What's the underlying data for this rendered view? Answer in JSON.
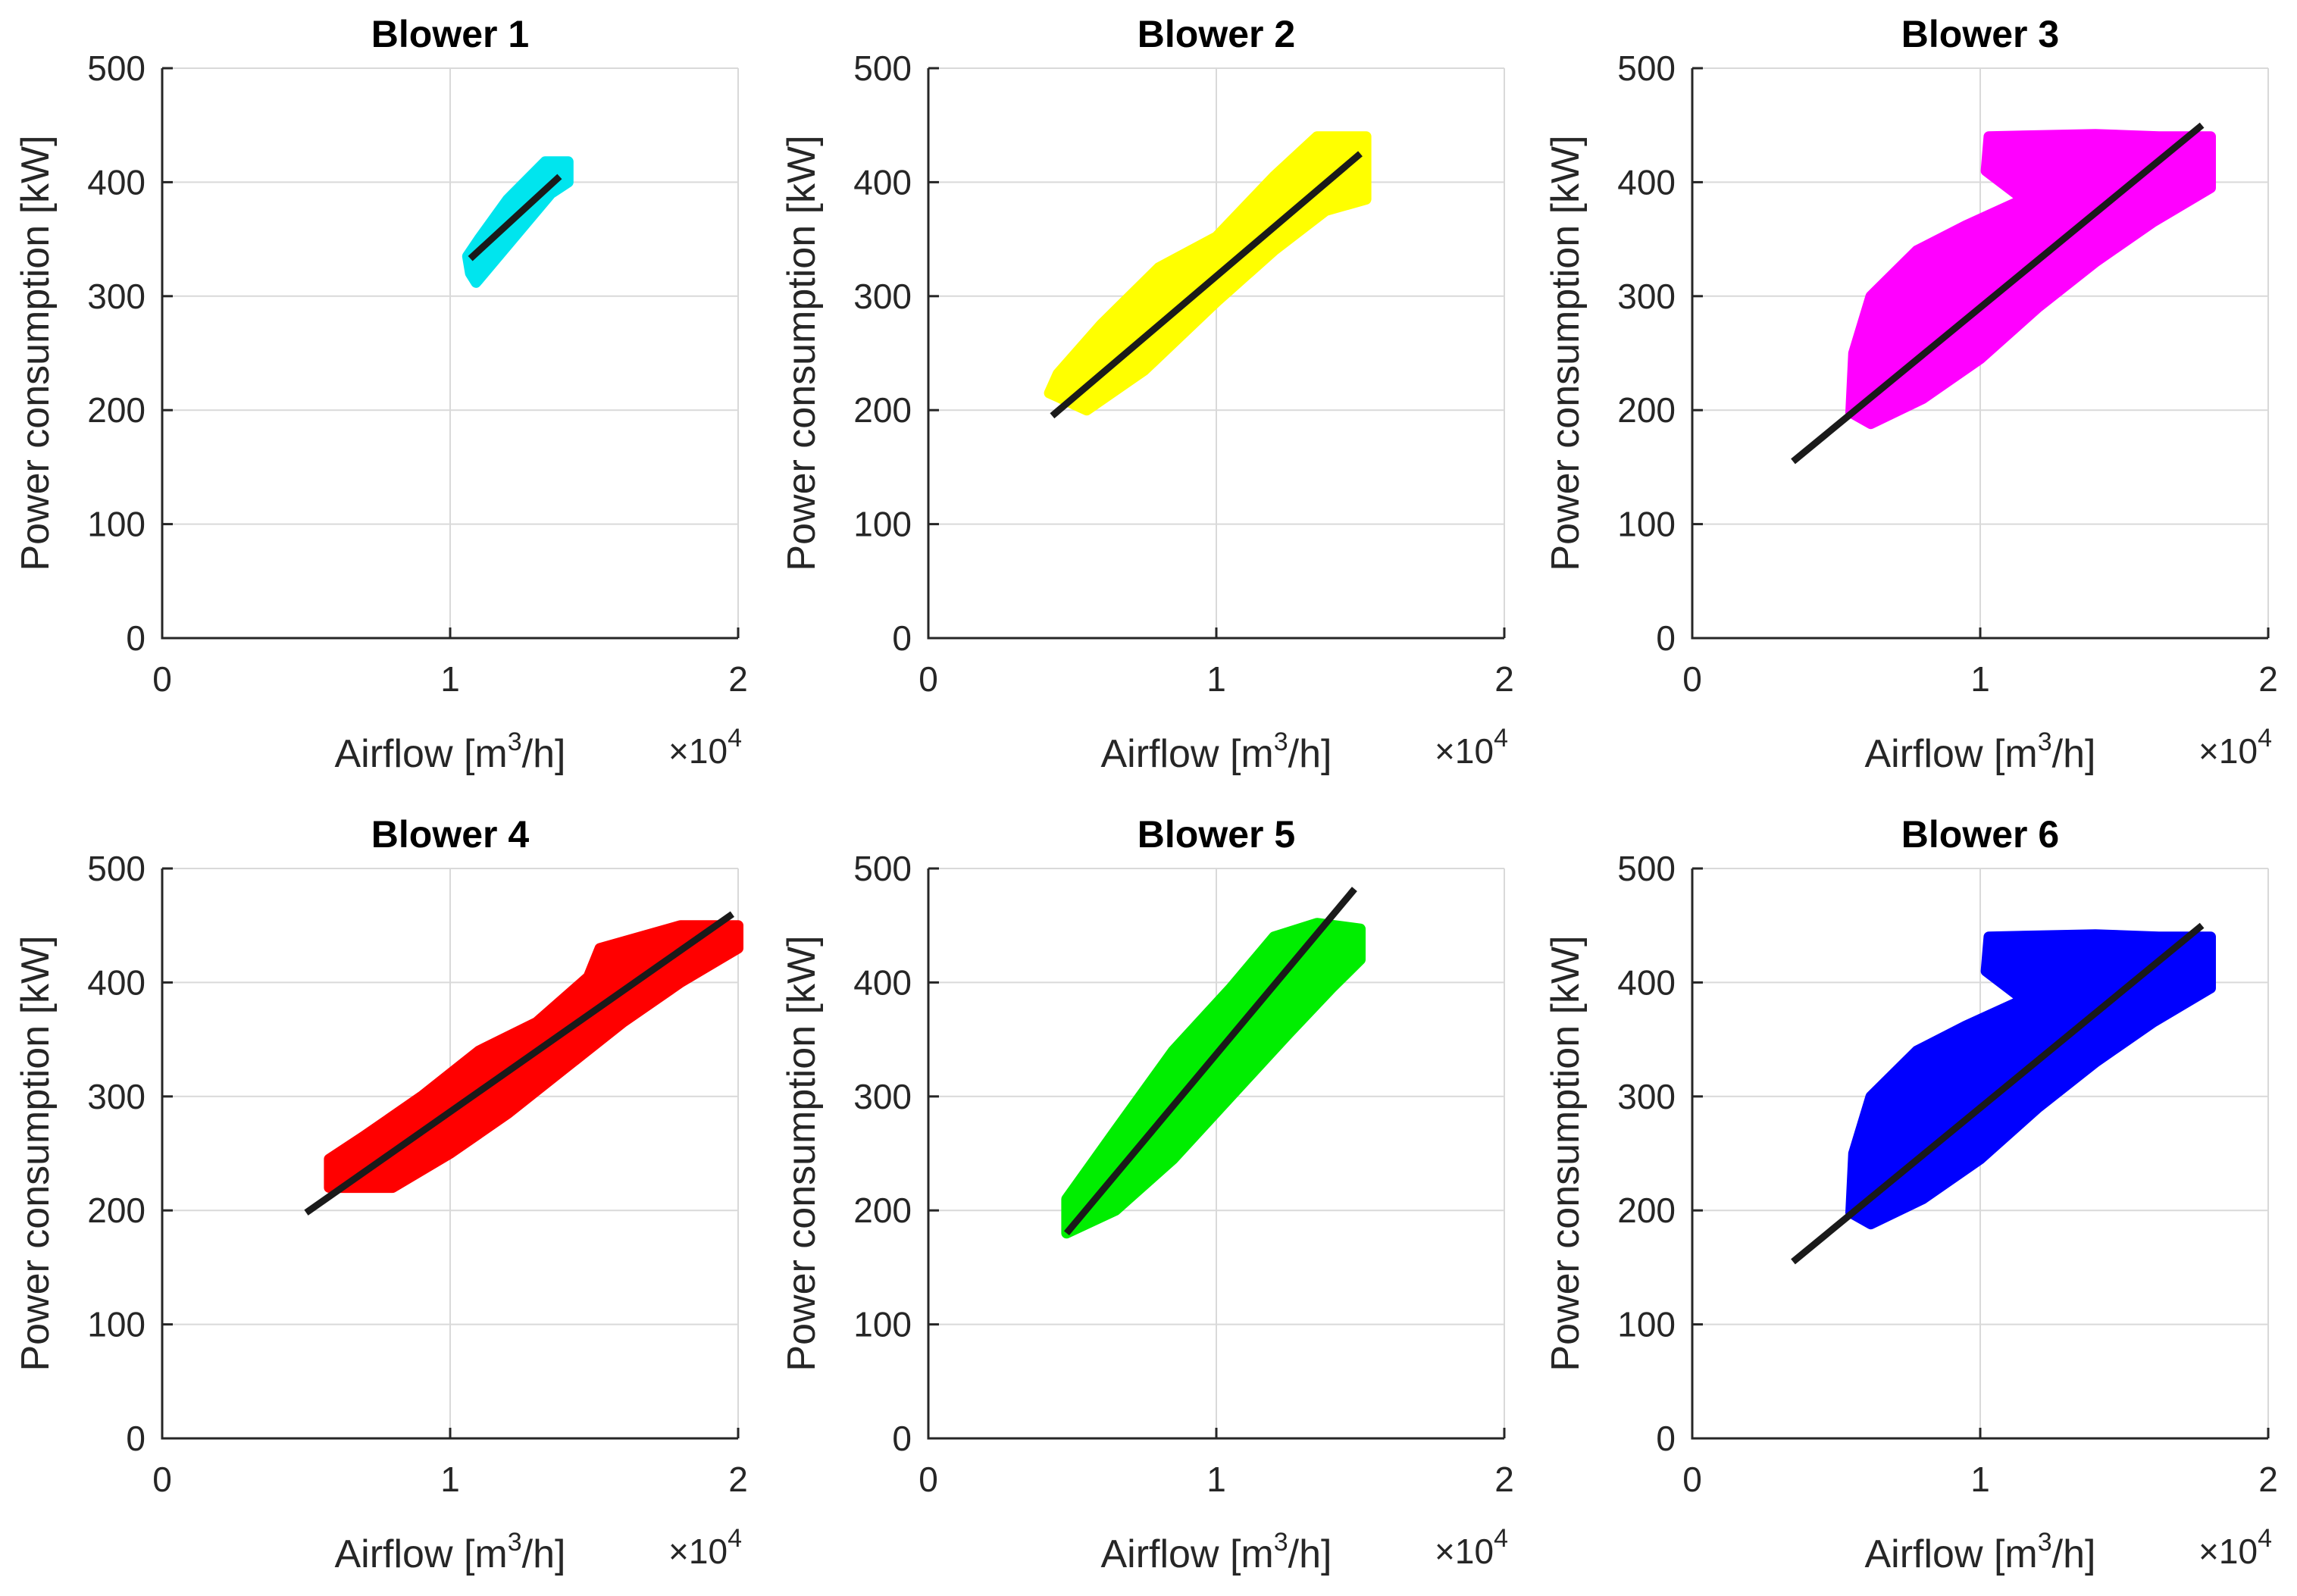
{
  "chart_data": [
    {
      "type": "scatter",
      "title": "Blower 1",
      "xlabel": "Airflow [m3/h]",
      "xlabel_parts": {
        "pre": "Airflow [m",
        "sup": "3",
        "post": "/h]"
      },
      "ylabel": "Power consumption [kW]",
      "x_multiplier": {
        "base": "×10",
        "exp": "4"
      },
      "xlim": [
        0,
        2
      ],
      "ylim": [
        0,
        500
      ],
      "xticks": [
        "0",
        "1",
        "2"
      ],
      "yticks": [
        "0",
        "100",
        "200",
        "300",
        "400",
        "500"
      ],
      "xtick_values": [
        0,
        1,
        2
      ],
      "ytick_values": [
        0,
        100,
        200,
        300,
        400,
        500
      ],
      "grid": true,
      "point_color": "#00e5ee",
      "cloud": [
        [
          1.07,
          320
        ],
        [
          1.09,
          312
        ],
        [
          1.2,
          345
        ],
        [
          1.35,
          390
        ],
        [
          1.41,
          400
        ],
        [
          1.41,
          418
        ],
        [
          1.33,
          418
        ],
        [
          1.2,
          385
        ],
        [
          1.1,
          350
        ],
        [
          1.06,
          335
        ]
      ],
      "fit_line": {
        "x": [
          1.07,
          1.38
        ],
        "y": [
          333,
          405
        ]
      }
    },
    {
      "type": "scatter",
      "title": "Blower 2",
      "xlabel": "Airflow [m3/h]",
      "xlabel_parts": {
        "pre": "Airflow [m",
        "sup": "3",
        "post": "/h]"
      },
      "ylabel": "Power consumption [kW]",
      "x_multiplier": {
        "base": "×10",
        "exp": "4"
      },
      "xlim": [
        0,
        2
      ],
      "ylim": [
        0,
        500
      ],
      "xticks": [
        "0",
        "1",
        "2"
      ],
      "yticks": [
        "0",
        "100",
        "200",
        "300",
        "400",
        "500"
      ],
      "xtick_values": [
        0,
        1,
        2
      ],
      "ytick_values": [
        0,
        100,
        200,
        300,
        400,
        500
      ],
      "grid": true,
      "point_color": "#ffff00",
      "cloud": [
        [
          0.42,
          215
        ],
        [
          0.55,
          200
        ],
        [
          0.75,
          235
        ],
        [
          1.0,
          295
        ],
        [
          1.2,
          340
        ],
        [
          1.38,
          375
        ],
        [
          1.52,
          385
        ],
        [
          1.52,
          440
        ],
        [
          1.35,
          440
        ],
        [
          1.2,
          405
        ],
        [
          1.0,
          352
        ],
        [
          0.8,
          325
        ],
        [
          0.6,
          275
        ],
        [
          0.45,
          232
        ]
      ],
      "fit_line": {
        "x": [
          0.43,
          1.5
        ],
        "y": [
          195,
          425
        ]
      }
    },
    {
      "type": "scatter",
      "title": "Blower 3",
      "xlabel": "Airflow [m3/h]",
      "xlabel_parts": {
        "pre": "Airflow [m",
        "sup": "3",
        "post": "/h]"
      },
      "ylabel": "Power consumption [kW]",
      "x_multiplier": {
        "base": "×10",
        "exp": "4"
      },
      "xlim": [
        0,
        2
      ],
      "ylim": [
        0,
        500
      ],
      "xticks": [
        "0",
        "1",
        "2"
      ],
      "yticks": [
        "0",
        "100",
        "200",
        "300",
        "400",
        "500"
      ],
      "xtick_values": [
        0,
        1,
        2
      ],
      "ytick_values": [
        0,
        100,
        200,
        300,
        400,
        500
      ],
      "grid": true,
      "point_color": "#ff00ff",
      "cloud": [
        [
          0.55,
          198
        ],
        [
          0.62,
          188
        ],
        [
          0.8,
          210
        ],
        [
          1.0,
          245
        ],
        [
          1.2,
          290
        ],
        [
          1.4,
          330
        ],
        [
          1.6,
          365
        ],
        [
          1.8,
          395
        ],
        [
          1.8,
          440
        ],
        [
          1.62,
          440
        ],
        [
          1.4,
          442
        ],
        [
          1.03,
          440
        ],
        [
          1.02,
          410
        ],
        [
          1.15,
          385
        ],
        [
          0.95,
          362
        ],
        [
          0.78,
          340
        ],
        [
          0.62,
          300
        ],
        [
          0.56,
          250
        ]
      ],
      "fit_line": {
        "x": [
          0.35,
          1.77
        ],
        "y": [
          155,
          450
        ]
      }
    },
    {
      "type": "scatter",
      "title": "Blower 4",
      "xlabel": "Airflow [m3/h]",
      "xlabel_parts": {
        "pre": "Airflow [m",
        "sup": "3",
        "post": "/h]"
      },
      "ylabel": "Power consumption [kW]",
      "x_multiplier": {
        "base": "×10",
        "exp": "4"
      },
      "xlim": [
        0,
        2
      ],
      "ylim": [
        0,
        500
      ],
      "xticks": [
        "0",
        "1",
        "2"
      ],
      "yticks": [
        "0",
        "100",
        "200",
        "300",
        "400",
        "500"
      ],
      "xtick_values": [
        0,
        1,
        2
      ],
      "ytick_values": [
        0,
        100,
        200,
        300,
        400,
        500
      ],
      "grid": true,
      "point_color": "#ff0000",
      "cloud": [
        [
          0.58,
          220
        ],
        [
          0.8,
          220
        ],
        [
          1.0,
          250
        ],
        [
          1.2,
          285
        ],
        [
          1.4,
          325
        ],
        [
          1.6,
          365
        ],
        [
          1.8,
          400
        ],
        [
          2.0,
          430
        ],
        [
          2.0,
          450
        ],
        [
          1.8,
          450
        ],
        [
          1.52,
          430
        ],
        [
          1.48,
          405
        ],
        [
          1.3,
          365
        ],
        [
          1.1,
          340
        ],
        [
          0.9,
          300
        ],
        [
          0.7,
          265
        ],
        [
          0.58,
          245
        ]
      ],
      "fit_line": {
        "x": [
          0.5,
          1.98
        ],
        "y": [
          198,
          460
        ]
      }
    },
    {
      "type": "scatter",
      "title": "Blower 5",
      "xlabel": "Airflow [m3/h]",
      "xlabel_parts": {
        "pre": "Airflow [m",
        "sup": "3",
        "post": "/h]"
      },
      "ylabel": "Power consumption [kW]",
      "x_multiplier": {
        "base": "×10",
        "exp": "4"
      },
      "xlim": [
        0,
        2
      ],
      "ylim": [
        0,
        500
      ],
      "xticks": [
        "0",
        "1",
        "2"
      ],
      "yticks": [
        "0",
        "100",
        "200",
        "300",
        "400",
        "500"
      ],
      "xtick_values": [
        0,
        1,
        2
      ],
      "ytick_values": [
        0,
        100,
        200,
        300,
        400,
        500
      ],
      "grid": true,
      "point_color": "#00ee00",
      "cloud": [
        [
          0.48,
          180
        ],
        [
          0.65,
          200
        ],
        [
          0.85,
          245
        ],
        [
          1.05,
          300
        ],
        [
          1.25,
          355
        ],
        [
          1.4,
          395
        ],
        [
          1.5,
          420
        ],
        [
          1.5,
          447
        ],
        [
          1.35,
          452
        ],
        [
          1.2,
          440
        ],
        [
          1.05,
          395
        ],
        [
          0.85,
          340
        ],
        [
          0.65,
          270
        ],
        [
          0.48,
          210
        ]
      ],
      "fit_line": {
        "x": [
          0.48,
          1.48
        ],
        "y": [
          180,
          482
        ]
      }
    },
    {
      "type": "scatter",
      "title": "Blower 6",
      "xlabel": "Airflow [m3/h]",
      "xlabel_parts": {
        "pre": "Airflow [m",
        "sup": "3",
        "post": "/h]"
      },
      "ylabel": "Power consumption [kW]",
      "x_multiplier": {
        "base": "×10",
        "exp": "4"
      },
      "xlim": [
        0,
        2
      ],
      "ylim": [
        0,
        500
      ],
      "xticks": [
        "0",
        "1",
        "2"
      ],
      "yticks": [
        "0",
        "100",
        "200",
        "300",
        "400",
        "500"
      ],
      "xtick_values": [
        0,
        1,
        2
      ],
      "ytick_values": [
        0,
        100,
        200,
        300,
        400,
        500
      ],
      "grid": true,
      "point_color": "#0000ff",
      "cloud": [
        [
          0.55,
          198
        ],
        [
          0.62,
          188
        ],
        [
          0.8,
          210
        ],
        [
          1.0,
          245
        ],
        [
          1.2,
          290
        ],
        [
          1.4,
          330
        ],
        [
          1.6,
          365
        ],
        [
          1.8,
          395
        ],
        [
          1.8,
          440
        ],
        [
          1.62,
          440
        ],
        [
          1.4,
          442
        ],
        [
          1.03,
          440
        ],
        [
          1.02,
          410
        ],
        [
          1.15,
          385
        ],
        [
          0.95,
          362
        ],
        [
          0.78,
          340
        ],
        [
          0.62,
          300
        ],
        [
          0.56,
          250
        ]
      ],
      "fit_line": {
        "x": [
          0.35,
          1.77
        ],
        "y": [
          155,
          450
        ]
      }
    }
  ]
}
